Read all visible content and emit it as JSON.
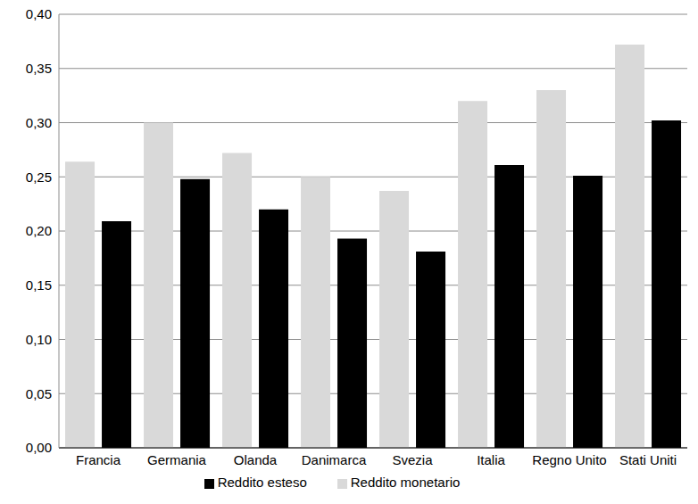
{
  "chart_data": {
    "type": "bar",
    "categories": [
      "Francia",
      "Germania",
      "Olanda",
      "Danimarca",
      "Svezia",
      "Italia",
      "Regno Unito",
      "Stati Uniti"
    ],
    "series": [
      {
        "name": "Reddito monetario",
        "color": "#d9d9d9",
        "values": [
          0.264,
          0.3,
          0.272,
          0.25,
          0.237,
          0.32,
          0.33,
          0.372
        ]
      },
      {
        "name": "Reddito esteso",
        "color": "#000000",
        "values": [
          0.209,
          0.248,
          0.22,
          0.193,
          0.181,
          0.261,
          0.251,
          0.302
        ]
      }
    ],
    "ylim": [
      0,
      0.4
    ],
    "yticks": [
      {
        "value": 0,
        "label": "0,00"
      },
      {
        "value": 0.05,
        "label": "0,05"
      },
      {
        "value": 0.1,
        "label": "0,10"
      },
      {
        "value": 0.15,
        "label": "0,15"
      },
      {
        "value": 0.2,
        "label": "0,20"
      },
      {
        "value": 0.25,
        "label": "0,25"
      },
      {
        "value": 0.3,
        "label": "0,30"
      },
      {
        "value": 0.35,
        "label": "0,35"
      },
      {
        "value": 0.4,
        "label": "0,40"
      }
    ],
    "grid": true,
    "legend": "bottom"
  }
}
